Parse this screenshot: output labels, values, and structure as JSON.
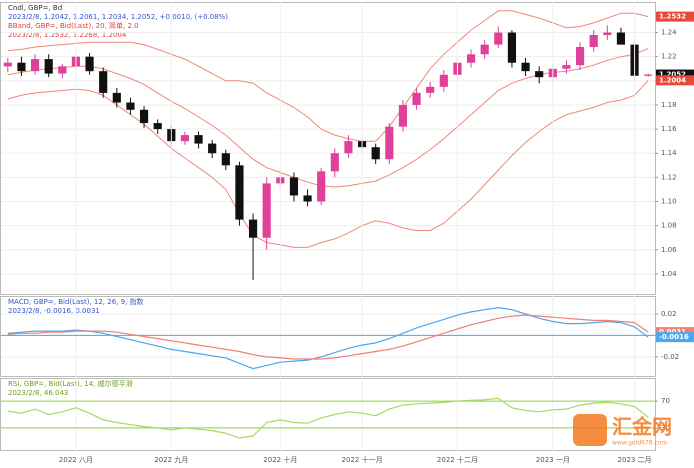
{
  "chart_data": [
    {
      "type": "candlestick",
      "title": "Cndl, GBP=, Bd",
      "subtitle": "2023/2/8, 1.2042, 1.2061, 1.2034, 1.2052, +0.0010, (+0.08%)",
      "band_title": "BBand, GBP=, Bid(Last), 20, 简单, 2.0",
      "band_subtitle": "2023/2/8, 1.2532, 1.2268, 1.2004",
      "categories": [
        null,
        null,
        null,
        null,
        null,
        "2022 八月",
        null,
        null,
        null,
        null,
        null,
        null,
        "2022 九月",
        null,
        null,
        null,
        null,
        null,
        null,
        null,
        "2022 十月",
        null,
        null,
        null,
        null,
        null,
        "2022 十一月",
        null,
        null,
        null,
        null,
        null,
        null,
        "2022 十二月",
        null,
        null,
        null,
        null,
        null,
        null,
        "2023 一月",
        null,
        null,
        null,
        null,
        null,
        "2023 二月",
        null
      ],
      "open": [
        1.212,
        1.215,
        1.208,
        1.218,
        1.206,
        1.212,
        1.22,
        1.208,
        1.19,
        1.182,
        1.176,
        1.165,
        1.16,
        1.15,
        1.155,
        1.148,
        1.14,
        1.13,
        1.085,
        1.07,
        1.115,
        1.12,
        1.105,
        1.1,
        1.125,
        1.14,
        1.15,
        1.145,
        1.135,
        1.162,
        1.18,
        1.19,
        1.195,
        1.205,
        1.215,
        1.222,
        1.23,
        1.24,
        1.215,
        1.208,
        1.203,
        1.21,
        1.213,
        1.228,
        1.238,
        1.24,
        1.23,
        1.2042
      ],
      "high": [
        1.219,
        1.22,
        1.222,
        1.222,
        1.214,
        1.224,
        1.223,
        1.211,
        1.194,
        1.186,
        1.179,
        1.168,
        1.163,
        1.158,
        1.158,
        1.151,
        1.143,
        1.133,
        1.09,
        1.12,
        1.126,
        1.124,
        1.11,
        1.128,
        1.144,
        1.155,
        1.153,
        1.148,
        1.165,
        1.184,
        1.194,
        1.199,
        1.209,
        1.219,
        1.226,
        1.234,
        1.245,
        1.242,
        1.219,
        1.212,
        1.214,
        1.217,
        1.232,
        1.242,
        1.246,
        1.244,
        1.233,
        1.2061
      ],
      "low": [
        1.207,
        1.204,
        1.205,
        1.203,
        1.202,
        1.209,
        1.205,
        1.186,
        1.178,
        1.172,
        1.161,
        1.156,
        1.146,
        1.147,
        1.144,
        1.136,
        1.126,
        1.08,
        1.035,
        1.06,
        1.11,
        1.1,
        1.096,
        1.097,
        1.12,
        1.136,
        1.141,
        1.131,
        1.131,
        1.158,
        1.176,
        1.186,
        1.191,
        1.201,
        1.211,
        1.218,
        1.227,
        1.211,
        1.204,
        1.198,
        1.199,
        1.206,
        1.209,
        1.224,
        1.234,
        1.231,
        1.201,
        1.2034
      ],
      "close": [
        1.215,
        1.208,
        1.218,
        1.206,
        1.212,
        1.22,
        1.208,
        1.19,
        1.182,
        1.176,
        1.165,
        1.16,
        1.15,
        1.155,
        1.148,
        1.14,
        1.13,
        1.085,
        1.07,
        1.115,
        1.12,
        1.105,
        1.1,
        1.125,
        1.14,
        1.15,
        1.145,
        1.135,
        1.162,
        1.18,
        1.19,
        1.195,
        1.205,
        1.215,
        1.222,
        1.23,
        1.24,
        1.215,
        1.208,
        1.203,
        1.21,
        1.213,
        1.228,
        1.238,
        1.24,
        1.23,
        1.2042,
        1.2052
      ],
      "up_color": "#e0409a",
      "down_color": "#111111",
      "close_tag_color": "#111111",
      "bands": {
        "color": "#f08878",
        "upper": [
          1.225,
          1.226,
          1.228,
          1.229,
          1.23,
          1.231,
          1.232,
          1.232,
          1.232,
          1.232,
          1.23,
          1.226,
          1.222,
          1.218,
          1.212,
          1.206,
          1.2,
          1.2,
          1.198,
          1.19,
          1.184,
          1.178,
          1.17,
          1.16,
          1.155,
          1.152,
          1.15,
          1.15,
          1.162,
          1.178,
          1.194,
          1.21,
          1.222,
          1.232,
          1.242,
          1.25,
          1.258,
          1.258,
          1.255,
          1.252,
          1.248,
          1.244,
          1.245,
          1.248,
          1.252,
          1.256,
          1.256,
          1.2532
        ],
        "middle": [
          1.205,
          1.207,
          1.209,
          1.21,
          1.211,
          1.212,
          1.212,
          1.21,
          1.206,
          1.202,
          1.197,
          1.19,
          1.183,
          1.177,
          1.17,
          1.163,
          1.155,
          1.145,
          1.135,
          1.128,
          1.124,
          1.12,
          1.116,
          1.113,
          1.112,
          1.113,
          1.115,
          1.117,
          1.122,
          1.128,
          1.135,
          1.143,
          1.152,
          1.162,
          1.172,
          1.182,
          1.192,
          1.198,
          1.202,
          1.205,
          1.207,
          1.208,
          1.21,
          1.213,
          1.217,
          1.22,
          1.222,
          1.2268
        ],
        "lower": [
          1.185,
          1.188,
          1.19,
          1.191,
          1.192,
          1.193,
          1.192,
          1.188,
          1.18,
          1.172,
          1.164,
          1.154,
          1.144,
          1.136,
          1.128,
          1.12,
          1.11,
          1.09,
          1.072,
          1.066,
          1.064,
          1.062,
          1.062,
          1.066,
          1.069,
          1.074,
          1.08,
          1.084,
          1.082,
          1.078,
          1.076,
          1.076,
          1.082,
          1.092,
          1.102,
          1.114,
          1.126,
          1.138,
          1.149,
          1.158,
          1.166,
          1.172,
          1.175,
          1.178,
          1.182,
          1.184,
          1.188,
          1.2004
        ]
      },
      "ylim": [
        1.025,
        1.262
      ],
      "yticks": [
        1.04,
        1.06,
        1.08,
        {
          "value": 1.1,
          "label": "1.10"
        },
        1.12,
        1.14,
        1.16,
        1.18,
        {
          "value": 1.2,
          "label": "1.20"
        },
        1.22,
        1.24
      ],
      "grid": true
    },
    {
      "type": "line",
      "title": "MACD, GBP=, Bid(Last), 12, 26, 9, 指数",
      "subtitle": "2023/2/8, -0.0016, 0.0031",
      "series": [
        {
          "color": "#4aa8ee",
          "values": [
            0.002,
            0.003,
            0.004,
            0.004,
            0.004,
            0.005,
            0.004,
            0.002,
            -0.001,
            -0.004,
            -0.007,
            -0.01,
            -0.013,
            -0.015,
            -0.017,
            -0.019,
            -0.021,
            -0.026,
            -0.031,
            -0.028,
            -0.025,
            -0.024,
            -0.023,
            -0.02,
            -0.016,
            -0.012,
            -0.009,
            -0.007,
            -0.003,
            0.002,
            0.007,
            0.011,
            0.015,
            0.019,
            0.022,
            0.024,
            0.026,
            0.024,
            0.02,
            0.016,
            0.013,
            0.011,
            0.011,
            0.012,
            0.013,
            0.012,
            0.008,
            -0.0016
          ]
        },
        {
          "color": "#f08070",
          "values": [
            0.001,
            0.002,
            0.002,
            0.003,
            0.003,
            0.004,
            0.004,
            0.004,
            0.003,
            0.001,
            -0.001,
            -0.003,
            -0.005,
            -0.007,
            -0.009,
            -0.011,
            -0.013,
            -0.015,
            -0.018,
            -0.02,
            -0.021,
            -0.022,
            -0.022,
            -0.022,
            -0.021,
            -0.019,
            -0.017,
            -0.015,
            -0.013,
            -0.01,
            -0.006,
            -0.002,
            0.002,
            0.006,
            0.01,
            0.013,
            0.016,
            0.018,
            0.019,
            0.018,
            0.017,
            0.016,
            0.015,
            0.014,
            0.014,
            0.013,
            0.012,
            0.0031
          ]
        }
      ],
      "zero_color": "#4aa8ee",
      "ylim": [
        -0.036,
        0.034
      ],
      "yticks": [
        -0.02,
        {
          "value": 0,
          "label": "0.00"
        },
        0.02
      ],
      "grid": true
    },
    {
      "type": "line",
      "title": "RSI, GBP=, Bid(Last), 14, 威尔德平滑",
      "subtitle": "2023/2/8, 46.043",
      "series": [
        {
          "color": "#a8d860",
          "values": [
            55,
            52,
            58,
            50,
            54,
            60,
            52,
            42,
            38,
            35,
            32,
            30,
            27,
            30,
            28,
            26,
            22,
            15,
            18,
            38,
            42,
            38,
            37,
            45,
            50,
            54,
            52,
            48,
            58,
            64,
            66,
            67,
            68,
            70,
            71,
            72,
            74,
            60,
            56,
            54,
            57,
            58,
            64,
            67,
            68,
            66,
            62,
            46.043
          ]
        }
      ],
      "level_color": "#8fcf3c",
      "ylim": [
        0,
        100
      ],
      "yticks": [
        30,
        70
      ],
      "grid": true
    }
  ],
  "watermark": {
    "brand": "汇金网",
    "url": "www.gold678.com"
  }
}
